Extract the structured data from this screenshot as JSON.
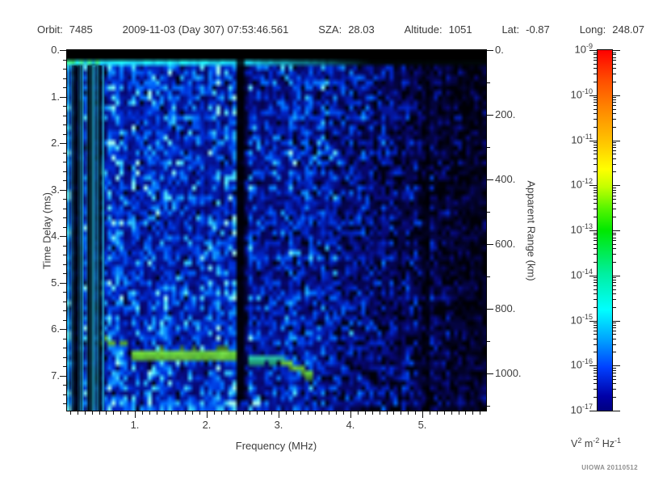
{
  "header": {
    "items": [
      {
        "label": "Orbit:",
        "value": "7485"
      },
      {
        "label": "",
        "value": "2009-11-03 (Day 307) 07:53:46.561"
      },
      {
        "label": "SZA:",
        "value": "28.03"
      },
      {
        "label": "Altitude:",
        "value": "1051"
      },
      {
        "label": "Lat:",
        "value": "-0.87"
      },
      {
        "label": "Long:",
        "value": "248.07"
      }
    ]
  },
  "chart_data": {
    "type": "heatmap",
    "xlabel": "Frequency (MHz)",
    "x_tick_labels": [
      "1.",
      "2.",
      "3.",
      "4.",
      "5."
    ],
    "x_range_mhz": [
      0.06,
      5.88
    ],
    "ylabel_left": "Time Delay (ms)",
    "y_tick_labels_ms": [
      "0.",
      "1.",
      "2.",
      "3.",
      "4.",
      "5.",
      "6.",
      "7."
    ],
    "y_range_ms": [
      0,
      7.76
    ],
    "ylabel_right": "Apparent Range (km)",
    "y_tick_labels_km": [
      "0.",
      "200.",
      "400.",
      "600.",
      "800.",
      "1000."
    ],
    "y_range_km": [
      0,
      1115
    ],
    "grid": false,
    "colorbar": {
      "scale": "log",
      "max": "1e-9",
      "min": "1e-17",
      "tick_exponents": [
        -9,
        -10,
        -11,
        -12,
        -13,
        -14,
        -15,
        -16,
        -17
      ],
      "unit_parts": [
        [
          "V",
          "2"
        ],
        [
          "m",
          "-2"
        ],
        [
          "Hz",
          "-1"
        ]
      ],
      "gradient": [
        [
          "#ff0000",
          0
        ],
        [
          "#ff4b00",
          8
        ],
        [
          "#ff8c00",
          17
        ],
        [
          "#ffc800",
          26
        ],
        [
          "#ffff00",
          33
        ],
        [
          "#c3ff00",
          38
        ],
        [
          "#55f500",
          44
        ],
        [
          "#00e800",
          50
        ],
        [
          "#00efa0",
          62
        ],
        [
          "#00ffff",
          72
        ],
        [
          "#00a6ff",
          80
        ],
        [
          "#0040ff",
          88
        ],
        [
          "#0000a8",
          96
        ],
        [
          "#000080",
          100
        ]
      ]
    },
    "features": [
      {
        "name": "top-black-bar",
        "delay_ms": [
          0,
          0.21
        ],
        "description": "solid black band across all frequencies"
      },
      {
        "name": "transmit-pulse-band",
        "delay_ms": 0.26,
        "freq_mhz": [
          0.06,
          4.1
        ],
        "color": "bright cyan, green near lowest frequencies, fades out above ~4 MHz"
      },
      {
        "name": "ionospheric-echo-trace",
        "delay_ms": [
          6.3,
          6.9
        ],
        "freq_mhz": [
          0.5,
          3.4
        ],
        "color": "bright green horizontal trace, dips down near 3.2 MHz"
      },
      {
        "name": "interference-gap",
        "freq_mhz": [
          2.38,
          2.5
        ],
        "description": "dark vertical stripe full height"
      },
      {
        "name": "low-frequency-stripes",
        "freq_mhz": [
          0.06,
          0.55
        ],
        "description": "fine alternating bright/dark vertical striping"
      },
      {
        "name": "background-noise",
        "description": "mottled blue noise, brighter cyan below 2.4 MHz, darker blue/black above 3.5 MHz"
      }
    ]
  },
  "spectrogram": {
    "seed": 7485,
    "grid": {
      "cols": 104,
      "rows": 72
    },
    "palette": [
      [
        0.0,
        0,
        0,
        0
      ],
      [
        0.16,
        8,
        8,
        118
      ],
      [
        0.33,
        0,
        45,
        215
      ],
      [
        0.5,
        0,
        105,
        255
      ],
      [
        0.66,
        25,
        170,
        255
      ],
      [
        0.82,
        85,
        235,
        255
      ],
      [
        0.96,
        175,
        255,
        242
      ]
    ],
    "stripe_factors": [
      1.1,
      0.45,
      0.14,
      0.5,
      0.95,
      0.16,
      0.1,
      0.55,
      0.8,
      0.9
    ],
    "dark_band_cols": [
      42,
      43
    ],
    "dark_band_soft_col": 44,
    "right_dark_cols": [
      88,
      89
    ],
    "band_row": 2,
    "black_rows": 2,
    "trace_green": [
      105,
      228,
      58
    ],
    "trace_cyan": [
      45,
      210,
      165
    ],
    "segments": {
      "A": {
        "c0": 8,
        "c1": 14,
        "rows": [
          57,
          58
        ]
      },
      "B": {
        "c0": 16,
        "c1": 41,
        "rows": [
          60,
          61
        ]
      },
      "C": {
        "c0": 45,
        "c1": 53,
        "rows": [
          61,
          62
        ]
      },
      "D": {
        "c0": 53,
        "c1": 60,
        "row_start": 62,
        "row_end": 64
      }
    },
    "bottom_boost": {
      "rows": [
        70,
        71
      ],
      "c0": 13,
      "c1": 49
    }
  },
  "credit": "UIOWA 20110512"
}
